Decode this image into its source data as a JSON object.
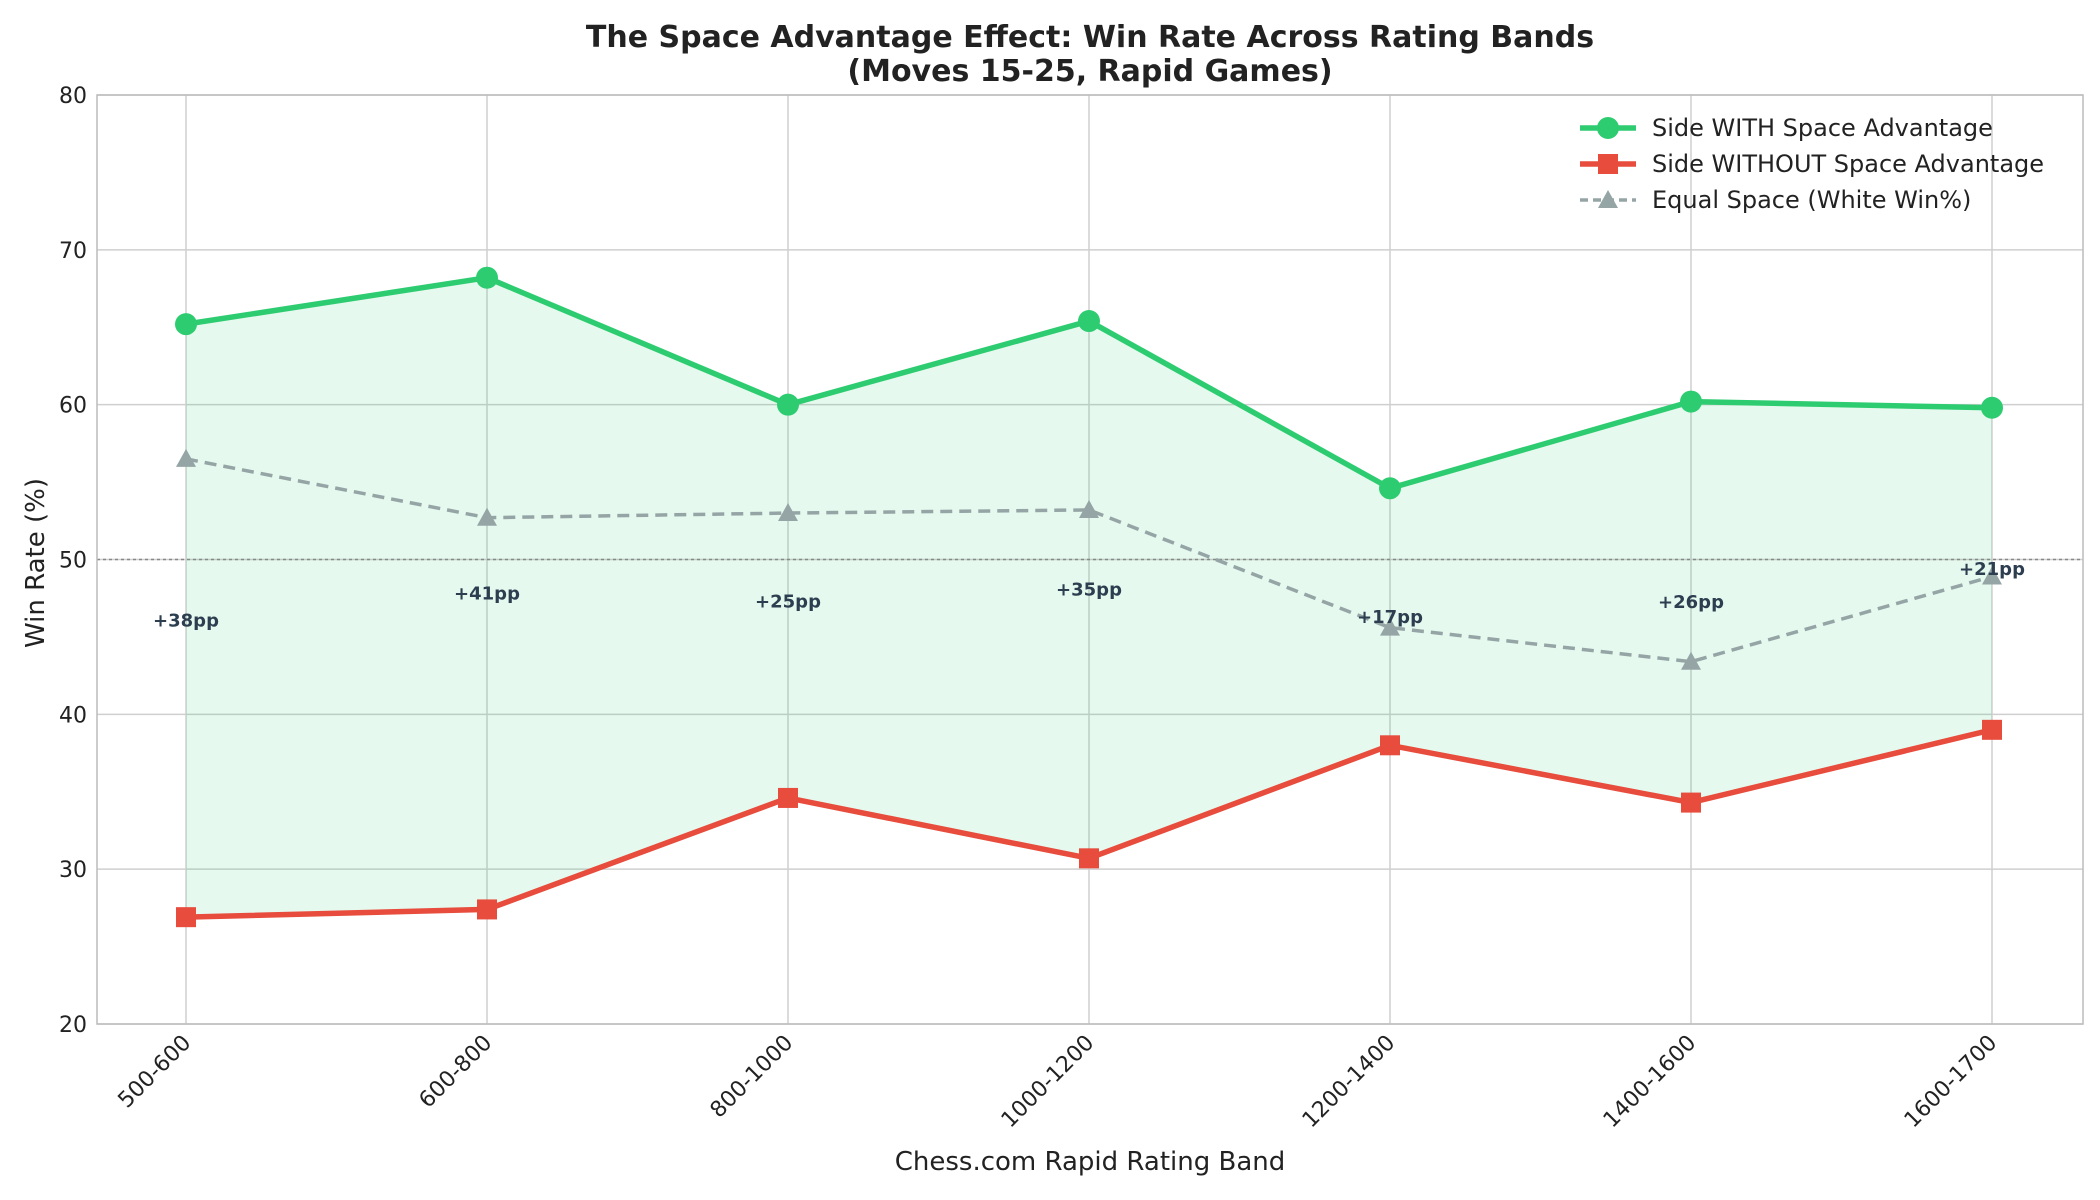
{
  "chart_data": {
    "type": "line",
    "title": "The Space Advantage Effect: Win Rate Across Rating Bands",
    "subtitle": "(Moves 15-25, Rapid Games)",
    "xlabel": "Chess.com Rapid Rating Band",
    "ylabel": "Win Rate (%)",
    "ylim": [
      20,
      80
    ],
    "yticks": [
      "20",
      "30",
      "40",
      "50",
      "60",
      "70",
      "80"
    ],
    "categories": [
      "500-600",
      "600-800",
      "800-1000",
      "1000-1200",
      "1200-1400",
      "1400-1600",
      "1600-1700"
    ],
    "series": [
      {
        "name": "Side WITH Space Advantage",
        "values": [
          65.2,
          68.2,
          60.0,
          65.4,
          54.6,
          60.2,
          59.8
        ],
        "color": "#2ecc71",
        "marker": "circle",
        "style": "solid"
      },
      {
        "name": "Side WITHOUT Space Advantage",
        "values": [
          26.9,
          27.4,
          34.6,
          30.7,
          38.0,
          34.3,
          39.0
        ],
        "color": "#e74c3c",
        "marker": "square",
        "style": "solid"
      },
      {
        "name": "Equal Space (White Win%)",
        "values": [
          56.5,
          52.7,
          53.0,
          53.2,
          45.6,
          43.4,
          48.9
        ],
        "color": "#95a5a6",
        "marker": "triangle",
        "style": "dashed"
      }
    ],
    "difference_labels": [
      "+38pp",
      "+41pp",
      "+25pp",
      "+35pp",
      "+17pp",
      "+26pp",
      "+21pp"
    ],
    "reference_line": 50,
    "fill_between": {
      "color": "#2ecc71"
    },
    "grid": true,
    "legend_position": "top-right"
  }
}
